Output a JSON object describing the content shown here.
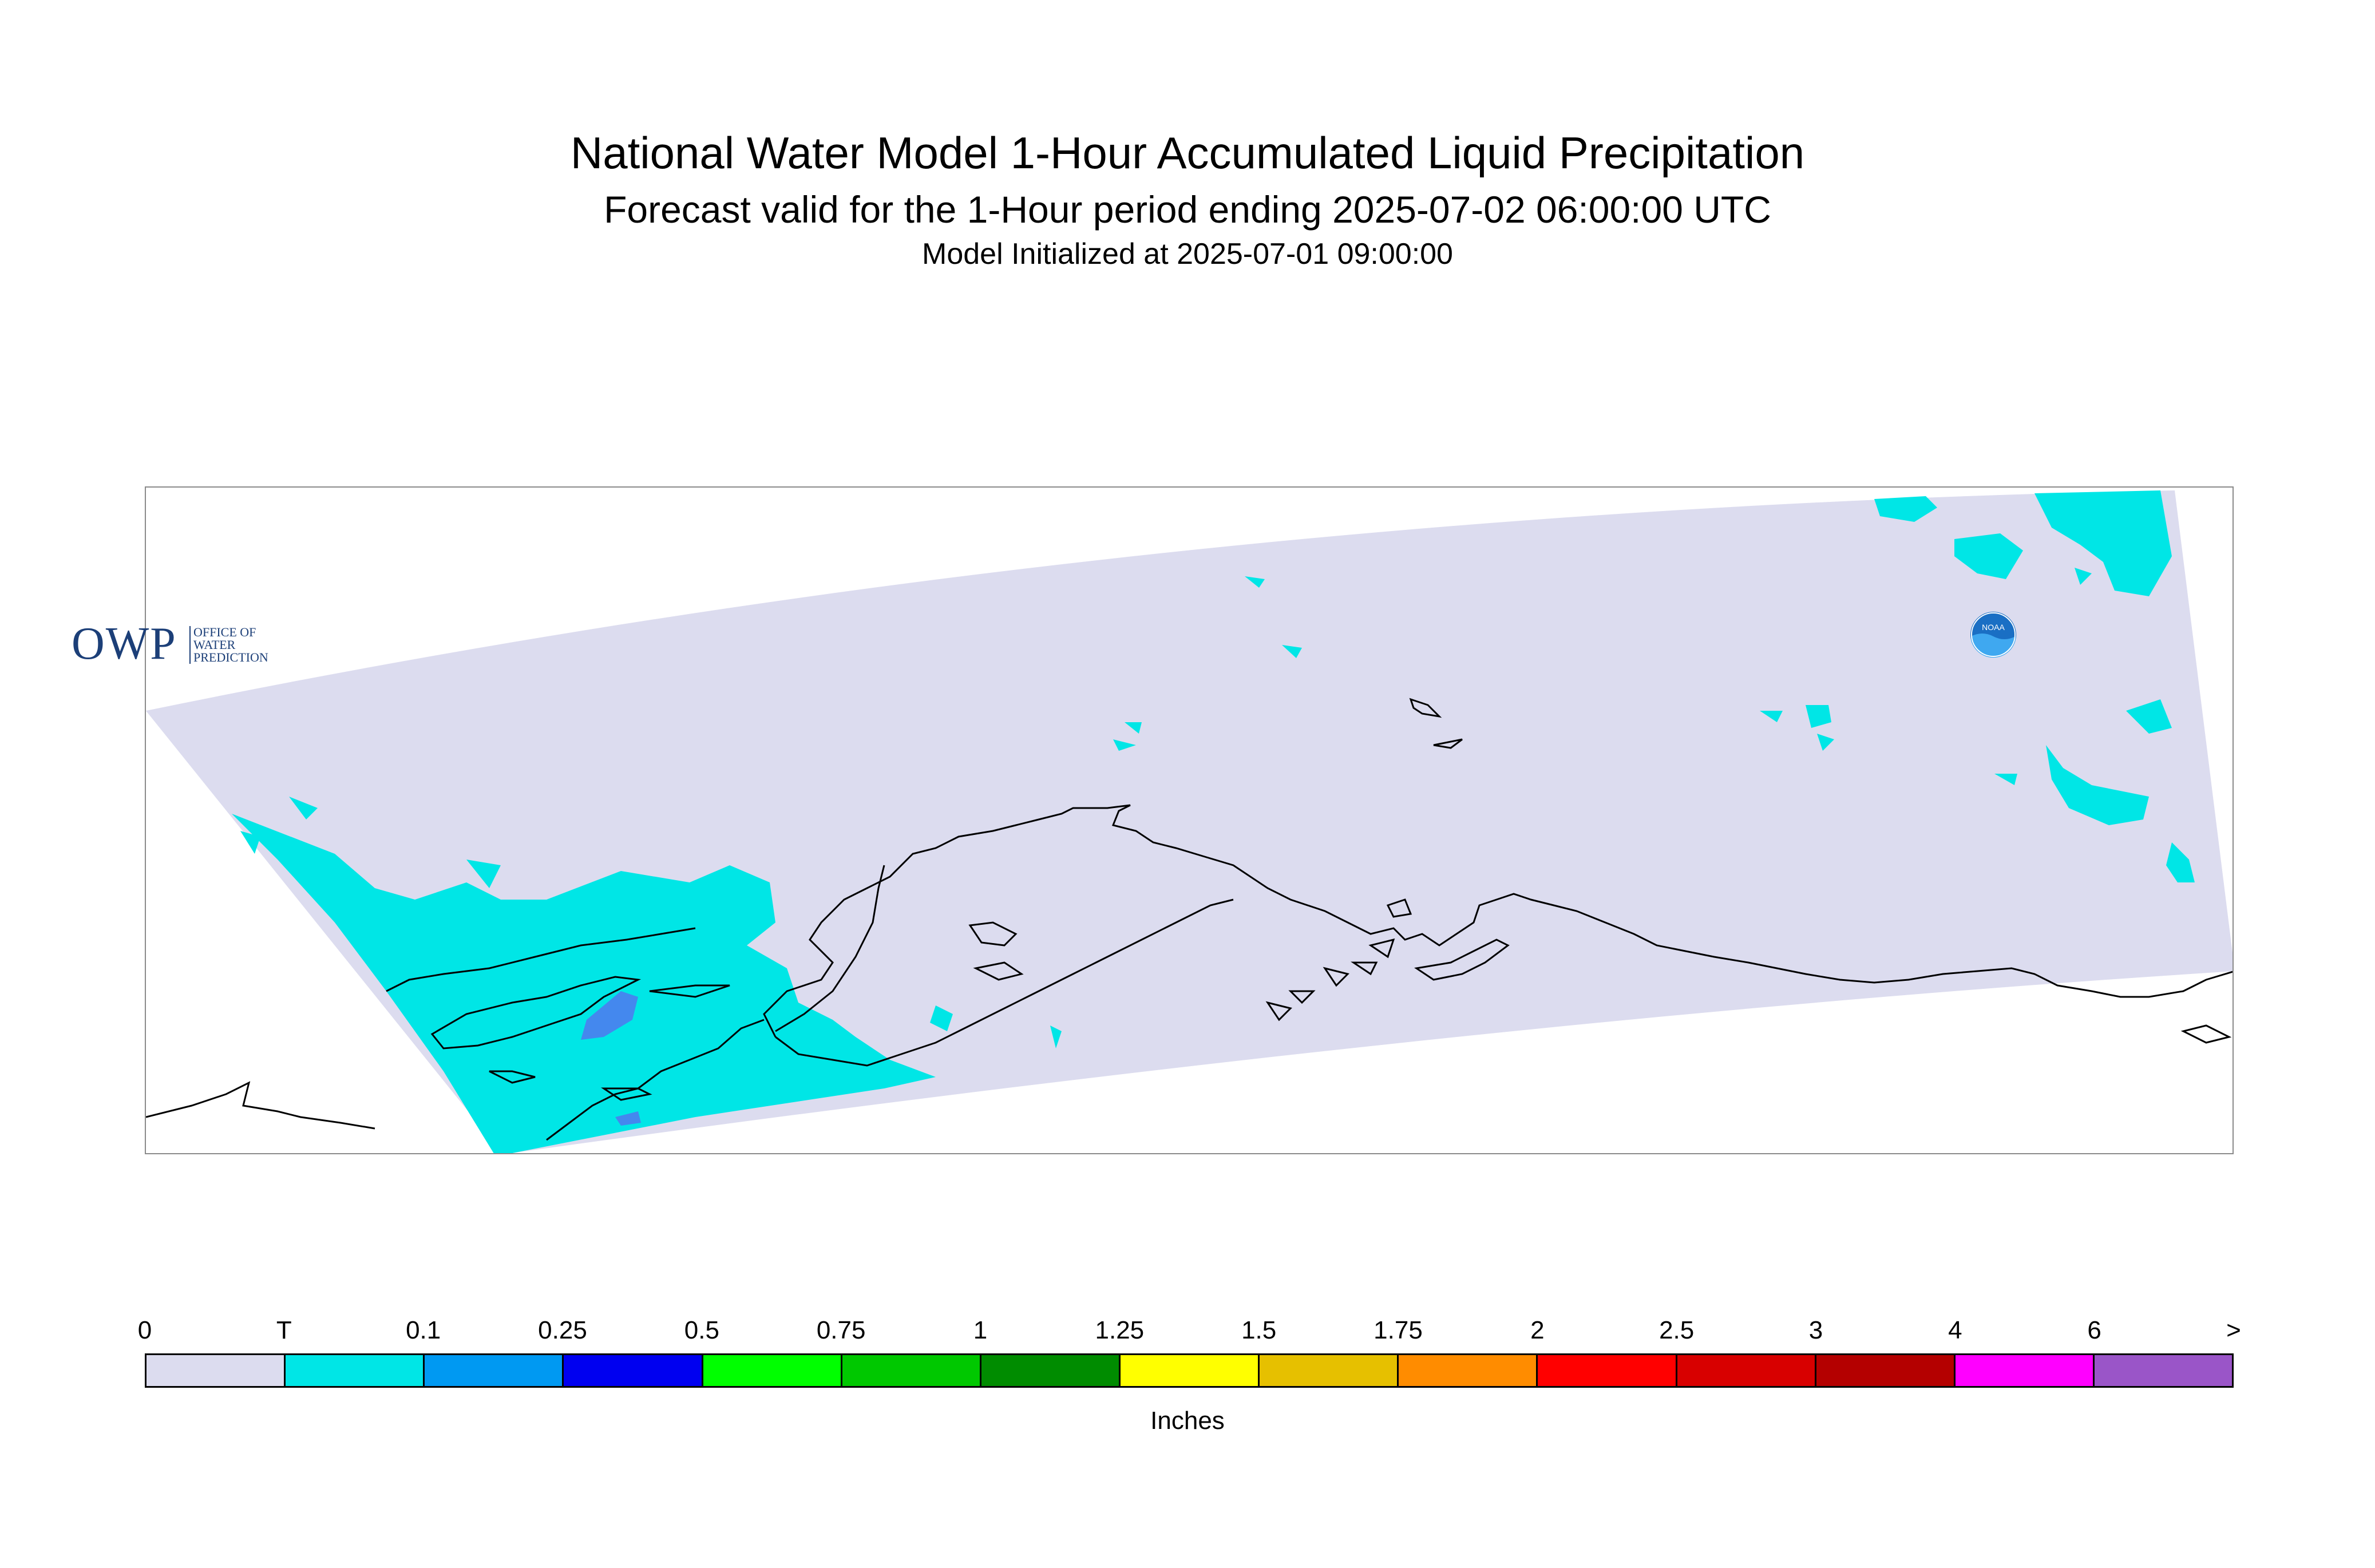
{
  "title": {
    "line1": "National Water Model 1-Hour Accumulated Liquid Precipitation",
    "line2": "Forecast valid for the 1-Hour period ending 2025-07-02 06:00:00 UTC",
    "line3": "Model Initialized at 2025-07-01 09:00:00"
  },
  "logos": {
    "owp_mark": "OWP",
    "owp_text": [
      "OFFICE OF",
      "WATER",
      "PREDICTION"
    ],
    "noaa_text": "NOAA"
  },
  "legend": {
    "units": "Inches",
    "tick_labels": [
      "0",
      "T",
      "0.1",
      "0.25",
      "0.5",
      "0.75",
      "1",
      "1.25",
      "1.5",
      "1.75",
      "2",
      "2.5",
      "3",
      "4",
      "6",
      ">"
    ],
    "colors": [
      "#dcdcef",
      "#00e6e6",
      "#0099f2",
      "#0000f0",
      "#00ff00",
      "#00c800",
      "#008c00",
      "#ffff00",
      "#e6c000",
      "#ff8c00",
      "#ff0000",
      "#d80000",
      "#b40000",
      "#ff00ff",
      "#9a55c8"
    ]
  },
  "map": {
    "background_fill": "#dcdcef",
    "precip_color_trace": "#00e6e6",
    "precip_color_01": "#4488ee",
    "coastline_color": "#000000"
  }
}
